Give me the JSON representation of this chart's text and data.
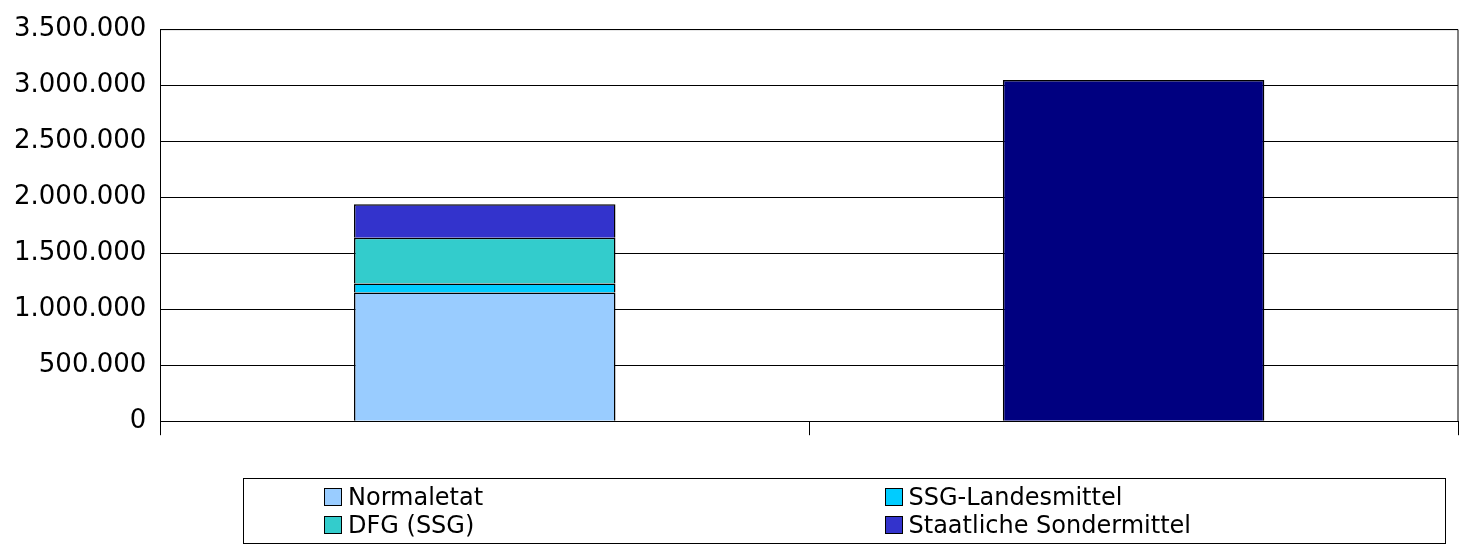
{
  "chart_data": {
    "type": "bar",
    "stacked": true,
    "categories": [
      null,
      null
    ],
    "series": [
      {
        "name": "Normaletat",
        "color": "#99ccff",
        "values": [
          1150000,
          null
        ]
      },
      {
        "name": "SSG-Landesmittel",
        "color": "#00ccff",
        "values": [
          80000,
          null
        ]
      },
      {
        "name": "DFG (SSG)",
        "color": "#33cccc",
        "values": [
          410000,
          null
        ]
      },
      {
        "name": "Staatliche Sondermittel",
        "color": "#3333cc",
        "values": [
          300000,
          null
        ]
      },
      {
        "color": "#000080",
        "values": [
          null,
          3050000
        ]
      }
    ],
    "ylim": [
      0,
      3500000
    ],
    "yticks": [
      0,
      {
        "value": 500000,
        "label": "500.000"
      },
      {
        "value": 1000000,
        "label": "1.000.000"
      },
      {
        "value": 1500000,
        "label": "1.500.000"
      },
      {
        "value": 2000000,
        "label": "2.000.000"
      },
      {
        "value": 2500000,
        "label": "2.500.000"
      },
      {
        "value": 3000000,
        "label": "3.000.000"
      },
      {
        "value": 3500000,
        "label": "3.500.000"
      }
    ],
    "grid": "y",
    "legend": "bottom"
  }
}
